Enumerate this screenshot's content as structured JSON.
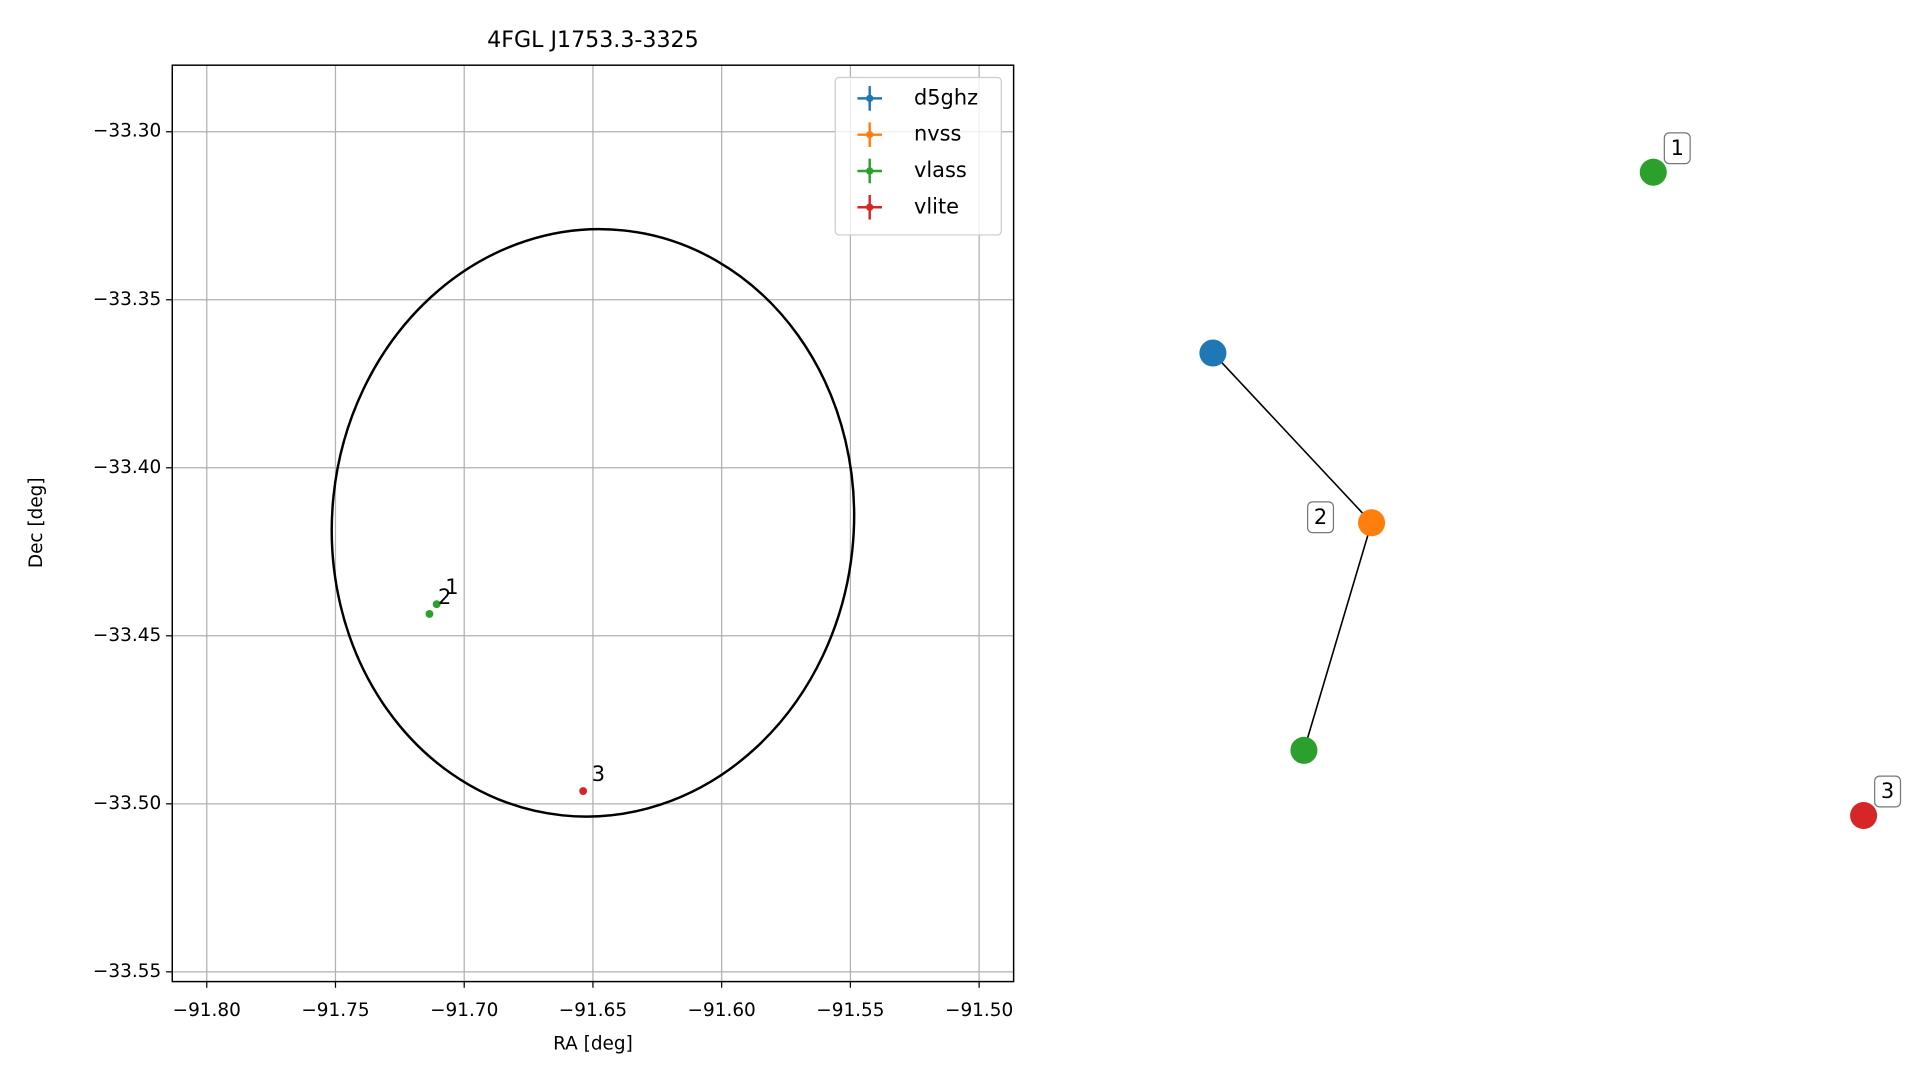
{
  "chart_data": {
    "type": "scatter",
    "title": "4FGL J1753.3-3325",
    "x_label": "RA [deg]",
    "y_label": "Dec [deg]",
    "xlim": [
      -91.8134,
      -91.4866
    ],
    "ylim": [
      -33.5529,
      -33.2802
    ],
    "xticks": [
      {
        "value": -91.8,
        "label": "−91.80"
      },
      {
        "value": -91.75,
        "label": "−91.75"
      },
      {
        "value": -91.7,
        "label": "−91.70"
      },
      {
        "value": -91.65,
        "label": "−91.65"
      },
      {
        "value": -91.6,
        "label": "−91.60"
      },
      {
        "value": -91.55,
        "label": "−91.55"
      },
      {
        "value": -91.5,
        "label": "−91.50"
      }
    ],
    "yticks": [
      {
        "value": -33.3,
        "label": "−33.30"
      },
      {
        "value": -33.35,
        "label": "−33.35"
      },
      {
        "value": -33.4,
        "label": "−33.40"
      },
      {
        "value": -33.45,
        "label": "−33.45"
      },
      {
        "value": -33.5,
        "label": "−33.50"
      },
      {
        "value": -33.55,
        "label": "−33.55"
      }
    ],
    "grid": true,
    "legend": "upper right",
    "series": [
      {
        "name": "d5ghz",
        "color": "#1f77b4",
        "x": [],
        "values": [],
        "point_labels": []
      },
      {
        "name": "nvss",
        "color": "#ff7f0e",
        "x": [],
        "values": [],
        "point_labels": []
      },
      {
        "name": "vlass",
        "color": "#2ca02c",
        "x": [
          -91.7107,
          -91.7135
        ],
        "values": [
          -33.4406,
          -33.4435
        ],
        "point_labels": [
          "1",
          "2"
        ]
      },
      {
        "name": "vlite",
        "color": "#d62728",
        "x": [
          -91.6538
        ],
        "values": [
          -33.4962
        ],
        "point_labels": [
          "3"
        ]
      }
    ],
    "ellipse": {
      "center": [
        -91.65,
        -33.4164
      ],
      "semi_axes": [
        0.1013,
        0.0875
      ],
      "angle": 6
    }
  },
  "network": {
    "labels": [
      "1",
      "2",
      "3"
    ]
  }
}
